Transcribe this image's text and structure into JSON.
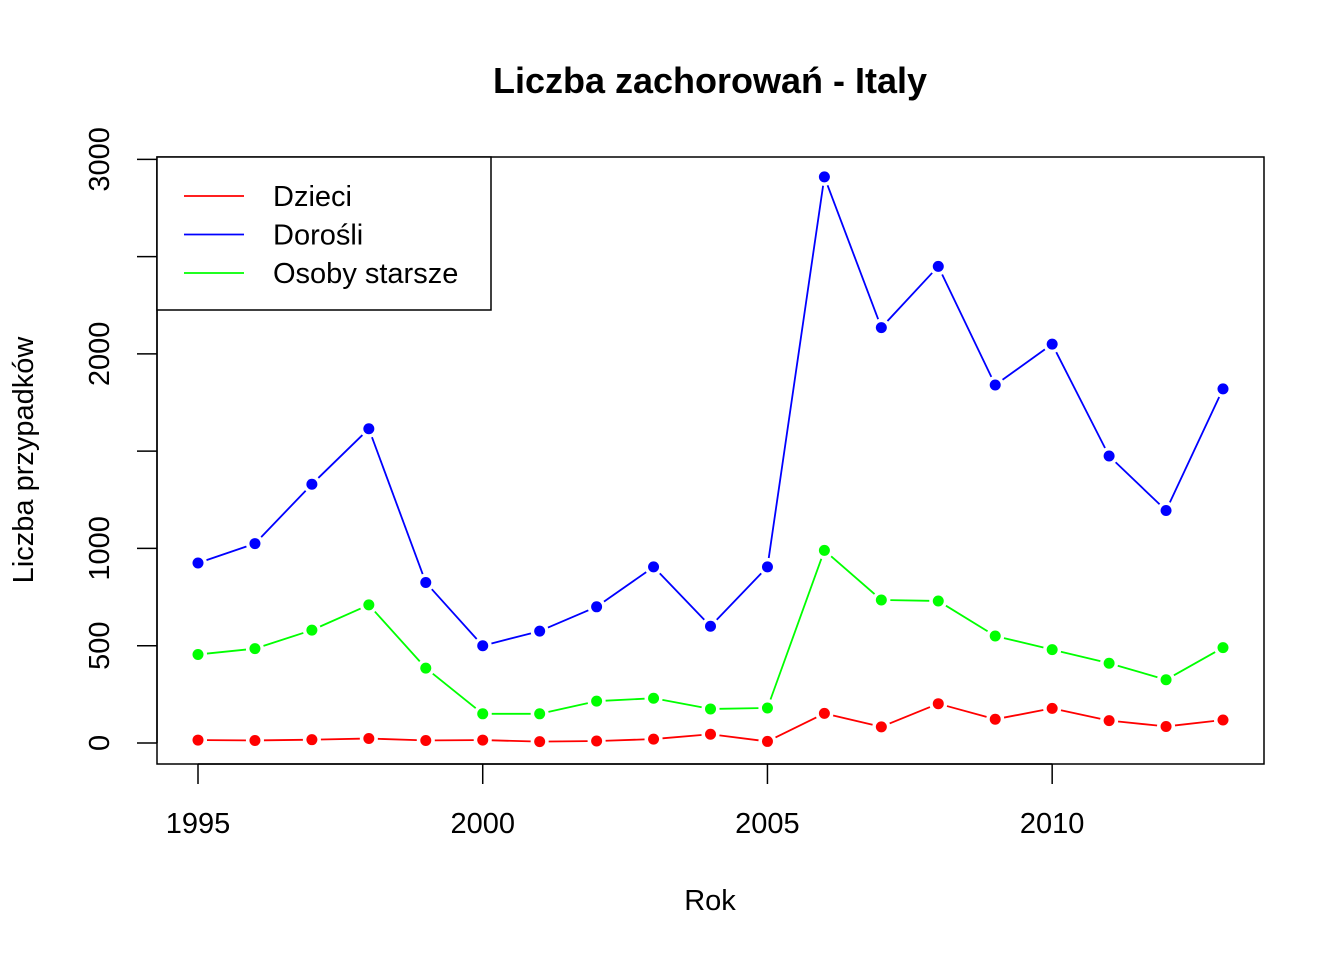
{
  "chart_data": {
    "type": "line",
    "title": "Liczba zachorowań -  Italy",
    "xlabel": "Rok",
    "ylabel": "Liczba przypadków",
    "x": [
      1995,
      1996,
      1997,
      1998,
      1999,
      2000,
      2001,
      2002,
      2003,
      2004,
      2005,
      2006,
      2007,
      2008,
      2009,
      2010,
      2011,
      2012,
      2013
    ],
    "xlim": [
      1994.28,
      2013.72
    ],
    "ylim": [
      -108,
      3012
    ],
    "x_ticks": [
      1995,
      2000,
      2005,
      2010
    ],
    "y_ticks": [
      0,
      500,
      1000,
      2000,
      3000
    ],
    "y_minor_ticks": [
      1500,
      2500
    ],
    "grid": false,
    "legend_position": "top-left",
    "series": [
      {
        "name": "Dzieci",
        "color": "#ff0000",
        "values": [
          15,
          13,
          17,
          23,
          13,
          15,
          7,
          10,
          20,
          45,
          8,
          152,
          83,
          202,
          122,
          178,
          115,
          85,
          118
        ]
      },
      {
        "name": "Dorośli",
        "color": "#0000ff",
        "values": [
          925,
          1025,
          1330,
          1615,
          825,
          500,
          575,
          700,
          905,
          600,
          905,
          2910,
          2135,
          2450,
          1840,
          2050,
          1475,
          1195,
          1820
        ]
      },
      {
        "name": "Osoby starsze",
        "color": "#00ff00",
        "values": [
          455,
          485,
          580,
          710,
          385,
          150,
          150,
          215,
          230,
          175,
          180,
          990,
          735,
          730,
          550,
          480,
          410,
          325,
          490
        ]
      }
    ]
  }
}
